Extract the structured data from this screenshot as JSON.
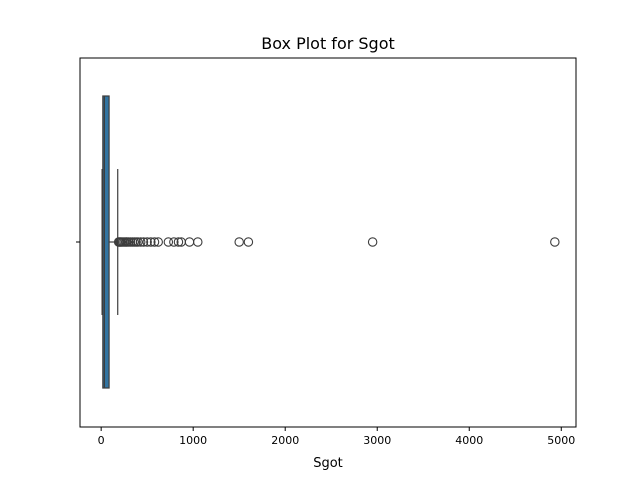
{
  "chart_data": {
    "type": "box",
    "title": "Box Plot for Sgot",
    "xlabel": "Sgot",
    "ylabel": "",
    "orientation": "horizontal",
    "xlim": [
      -230,
      5160
    ],
    "xticks": [
      0,
      1000,
      2000,
      3000,
      4000,
      5000
    ],
    "xtick_labels": [
      "0",
      "1000",
      "2000",
      "3000",
      "4000",
      "5000"
    ],
    "grid": false,
    "colors": {
      "box_fill": "#3274a1",
      "line": "#3d3d3d"
    },
    "box": {
      "q1": 18,
      "median": 35,
      "q3": 86,
      "whisker_low": 10,
      "whisker_high": 180
    },
    "outliers": [
      190,
      200,
      210,
      220,
      235,
      250,
      265,
      280,
      300,
      320,
      340,
      360,
      380,
      400,
      430,
      460,
      500,
      540,
      580,
      620,
      730,
      790,
      840,
      870,
      960,
      1050,
      1500,
      1600,
      2950,
      4930
    ]
  }
}
